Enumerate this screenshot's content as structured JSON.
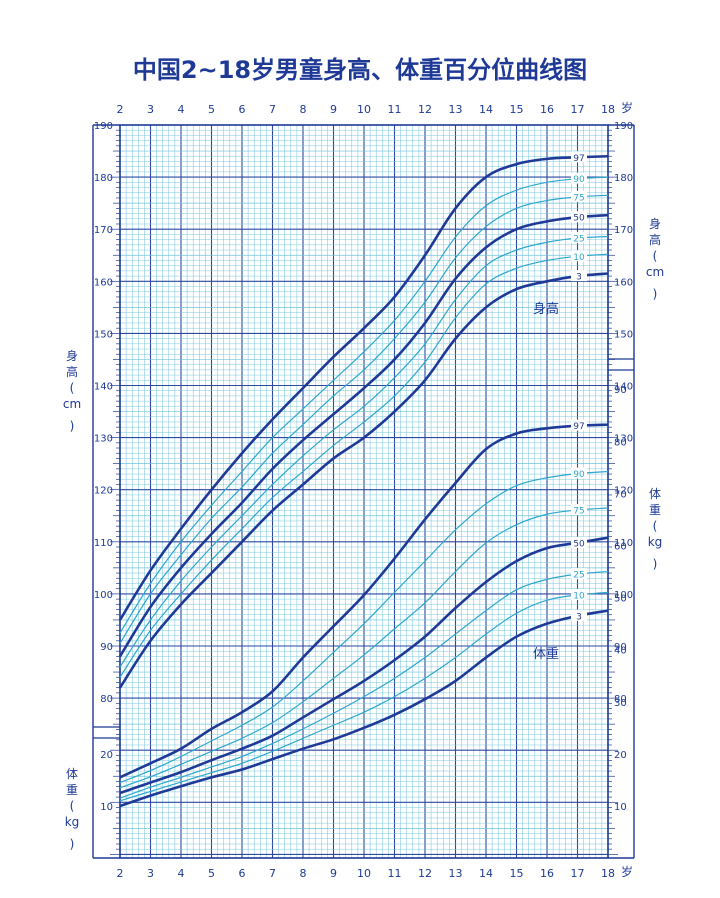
{
  "title": "中国2~18岁男童身高、体重百分位曲线图",
  "colors": {
    "dark": "#1e3a96",
    "light": "#2ea6cc",
    "grid_major": "#2a4aa0",
    "grid_minor": "#6fc3dc",
    "text": "#1e3a96"
  },
  "age_unit": "岁",
  "height_label": [
    "身",
    "高",
    "(",
    "cm",
    ")"
  ],
  "weight_label": [
    "体",
    "重",
    "(",
    "kg",
    ")"
  ],
  "height_curve_label": "身高",
  "weight_curve_label": "体重",
  "chart_data": {
    "type": "line",
    "title": "中国2~18岁男童身高、体重百分位曲线图",
    "x_ticks": [
      "2",
      "3",
      "4",
      "5",
      "6",
      "7",
      "8",
      "9",
      "10",
      "11",
      "12",
      "13",
      "14",
      "15",
      "16",
      "17",
      "18"
    ],
    "xlim": [
      2,
      18
    ],
    "height_ticks": [
      "80",
      "90",
      "100",
      "110",
      "120",
      "130",
      "140",
      "150",
      "160",
      "170",
      "180",
      "190"
    ],
    "weight_ticks_left": [
      "10",
      "20"
    ],
    "weight_ticks_right": [
      "10",
      "20",
      "30",
      "40",
      "50",
      "60",
      "70",
      "80",
      "90"
    ],
    "height_series": [
      {
        "name": "3",
        "x": [
          2,
          3,
          4,
          5,
          6,
          7,
          8,
          9,
          10,
          11,
          12,
          13,
          14,
          15,
          16,
          17,
          18
        ],
        "values": [
          82,
          91,
          98,
          104,
          110,
          116,
          121,
          126,
          130,
          135,
          141,
          149,
          155,
          158.5,
          160,
          161,
          161.5
        ]
      },
      {
        "name": "10",
        "x": [
          2,
          3,
          4,
          5,
          6,
          7,
          8,
          9,
          10,
          11,
          12,
          13,
          14,
          15,
          16,
          17,
          18
        ],
        "values": [
          84,
          93,
          100,
          106.5,
          112.5,
          118.5,
          123.5,
          128.5,
          133,
          138,
          144.5,
          153,
          159.5,
          162.5,
          164,
          164.8,
          165.2
        ]
      },
      {
        "name": "25",
        "x": [
          2,
          3,
          4,
          5,
          6,
          7,
          8,
          9,
          10,
          11,
          12,
          13,
          14,
          15,
          16,
          17,
          18
        ],
        "values": [
          86,
          95,
          102.5,
          109,
          115,
          121,
          126.5,
          131.5,
          136,
          141.5,
          148,
          156.5,
          163,
          166,
          167.5,
          168.3,
          168.6
        ]
      },
      {
        "name": "50",
        "x": [
          2,
          3,
          4,
          5,
          6,
          7,
          8,
          9,
          10,
          11,
          12,
          13,
          14,
          15,
          16,
          17,
          18
        ],
        "values": [
          88,
          97.5,
          105,
          111.5,
          117.5,
          124,
          129.5,
          134.5,
          139.5,
          145,
          152,
          160.5,
          166.5,
          170,
          171.5,
          172.3,
          172.7
        ]
      },
      {
        "name": "75",
        "x": [
          2,
          3,
          4,
          5,
          6,
          7,
          8,
          9,
          10,
          11,
          12,
          13,
          14,
          15,
          16,
          17,
          18
        ],
        "values": [
          90.5,
          100,
          107.5,
          114.5,
          120.5,
          127,
          132.5,
          138,
          143,
          149,
          156,
          164.5,
          170.5,
          174,
          175.5,
          176.2,
          176.5
        ]
      },
      {
        "name": "90",
        "x": [
          2,
          3,
          4,
          5,
          6,
          7,
          8,
          9,
          10,
          11,
          12,
          13,
          14,
          15,
          16,
          17,
          18
        ],
        "values": [
          92.5,
          102,
          110,
          117,
          123.5,
          130,
          135.5,
          141,
          146.5,
          152.5,
          160,
          168.5,
          174.5,
          177.5,
          179,
          179.7,
          180
        ]
      },
      {
        "name": "97",
        "x": [
          2,
          3,
          4,
          5,
          6,
          7,
          8,
          9,
          10,
          11,
          12,
          13,
          14,
          15,
          16,
          17,
          18
        ],
        "values": [
          95,
          104.5,
          112.5,
          120,
          127,
          133.5,
          139.5,
          145.5,
          151,
          157,
          165,
          174,
          180,
          182.5,
          183.5,
          183.8,
          184
        ]
      }
    ],
    "weight_series": [
      {
        "name": "3",
        "x": [
          2,
          3,
          4,
          5,
          6,
          7,
          8,
          9,
          10,
          11,
          12,
          13,
          14,
          15,
          16,
          17,
          18
        ],
        "values": [
          10,
          12,
          13.8,
          15.5,
          17,
          19,
          21,
          22.8,
          25,
          27.5,
          30.5,
          34,
          38.5,
          42.5,
          45,
          46.5,
          47.5
        ]
      },
      {
        "name": "10",
        "x": [
          2,
          3,
          4,
          5,
          6,
          7,
          8,
          9,
          10,
          11,
          12,
          13,
          14,
          15,
          16,
          17,
          18
        ],
        "values": [
          11,
          12.8,
          14.6,
          16.4,
          18.2,
          20.5,
          23,
          25.5,
          28,
          31,
          34.5,
          38.5,
          43,
          47,
          49.5,
          50.5,
          51
        ]
      },
      {
        "name": "25",
        "x": [
          2,
          3,
          4,
          5,
          6,
          7,
          8,
          9,
          10,
          11,
          12,
          13,
          14,
          15,
          16,
          17,
          18
        ],
        "values": [
          11.5,
          13.6,
          15.5,
          17.5,
          19.5,
          22,
          24.8,
          27.8,
          31,
          34.5,
          38.5,
          43,
          47.5,
          51.5,
          53.5,
          54.5,
          55
        ]
      },
      {
        "name": "50",
        "x": [
          2,
          3,
          4,
          5,
          6,
          7,
          8,
          9,
          10,
          11,
          12,
          13,
          14,
          15,
          16,
          17,
          18
        ],
        "values": [
          12.5,
          14.5,
          16.5,
          18.8,
          21,
          23.5,
          27,
          30.5,
          34,
          38,
          42.5,
          48,
          53,
          57,
          59.5,
          60.5,
          61.5
        ]
      },
      {
        "name": "75",
        "x": [
          2,
          3,
          4,
          5,
          6,
          7,
          8,
          9,
          10,
          11,
          12,
          13,
          14,
          15,
          16,
          17,
          18
        ],
        "values": [
          13.5,
          15.6,
          18,
          20.5,
          23,
          26,
          30,
          34.5,
          39,
          44,
          49,
          55,
          60.5,
          64,
          66,
          66.8,
          67.2
        ]
      },
      {
        "name": "90",
        "x": [
          2,
          3,
          4,
          5,
          6,
          7,
          8,
          9,
          10,
          11,
          12,
          13,
          14,
          15,
          16,
          17,
          18
        ],
        "values": [
          14.5,
          16.8,
          19.5,
          22.5,
          25.5,
          29,
          34,
          39.5,
          45,
          51,
          57,
          63,
          68,
          71.5,
          73,
          73.8,
          74.2
        ]
      },
      {
        "name": "97",
        "x": [
          2,
          3,
          4,
          5,
          6,
          7,
          8,
          9,
          10,
          11,
          12,
          13,
          14,
          15,
          16,
          17,
          18
        ],
        "values": [
          15.5,
          18.2,
          21,
          24.8,
          28,
          32,
          38.5,
          44.5,
          50.5,
          57.5,
          65,
          72,
          78.5,
          81.5,
          82.5,
          83,
          83.2
        ]
      }
    ]
  }
}
